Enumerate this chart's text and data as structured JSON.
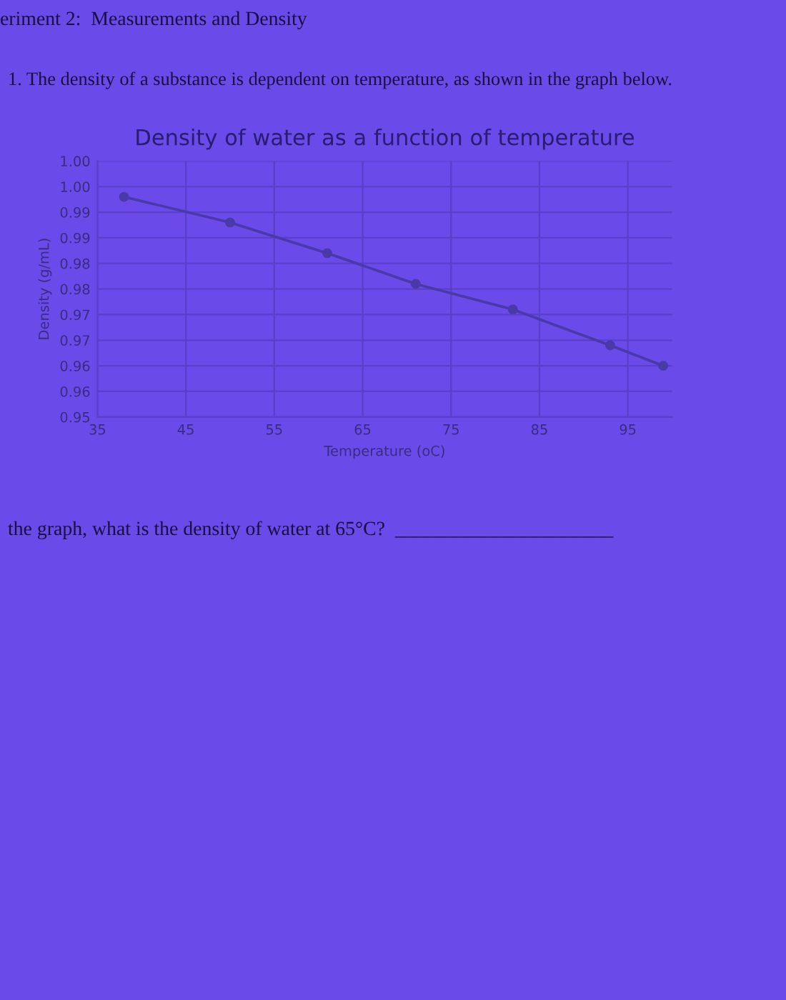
{
  "chart_data": {
    "type": "line",
    "title": "Density of water as a function of temperature",
    "xlabel": "Temperature (oC)",
    "ylabel": "Density (g/mL)",
    "x": [
      38,
      50,
      61,
      71,
      82,
      93,
      99
    ],
    "series": [
      {
        "color": "#4a3aa8",
        "values": [
          0.993,
          0.988,
          0.982,
          0.976,
          0.971,
          0.964,
          0.96
        ]
      }
    ],
    "xlim": [
      35,
      100
    ],
    "xticks": [
      35,
      45,
      55,
      65,
      75,
      85,
      95
    ],
    "ylim": [
      0.95,
      1.0
    ],
    "yticks": [
      {
        "value": 0.95,
        "label": "0.95"
      },
      {
        "value": 0.955,
        "label": "0.96"
      },
      {
        "value": 0.96,
        "label": "0.96"
      },
      {
        "value": 0.965,
        "label": "0.97"
      },
      {
        "value": 0.97,
        "label": "0.97"
      },
      {
        "value": 0.975,
        "label": "0.98"
      },
      {
        "value": 0.98,
        "label": "0.98"
      },
      {
        "value": 0.985,
        "label": "0.99"
      },
      {
        "value": 0.99,
        "label": "0.99"
      },
      {
        "value": 0.995,
        "label": "1.00"
      },
      {
        "value": 1.0,
        "label": "1.00"
      }
    ],
    "grid": true,
    "marker": "circle",
    "line_style": "solid",
    "annotations": [
      "eriment 2:  Measurements and Density",
      "1. The density of a substance is dependent on temperature, as shown in the graph below.",
      "the graph, what is the density of water at 65°C?  ______________________"
    ]
  }
}
